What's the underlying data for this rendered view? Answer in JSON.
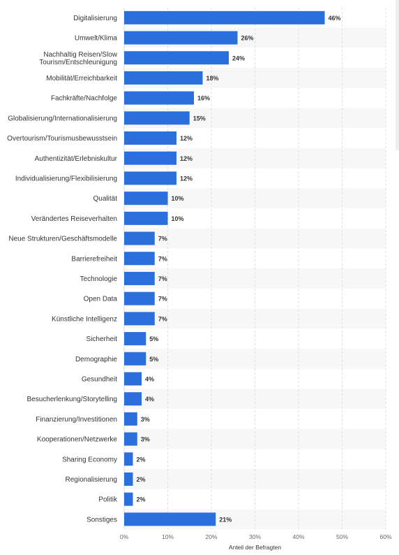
{
  "chart_data": {
    "type": "bar",
    "orientation": "horizontal",
    "categories": [
      [
        "Digitalisierung"
      ],
      [
        "Umwelt/Klima"
      ],
      [
        "Nachhaltig Reisen/Slow",
        "Tourism/Entschleunigung"
      ],
      [
        "Mobilität/Erreichbarkeit"
      ],
      [
        "Fachkräfte/Nachfolge"
      ],
      [
        "Globalisierung/Internationalisierung"
      ],
      [
        "Overtourism/Tourismusbewusstsein"
      ],
      [
        "Authentizität/Erlebniskultur"
      ],
      [
        "Individualisierung/Flexibilisierung"
      ],
      [
        "Qualität"
      ],
      [
        "Verändertes Reiseverhalten"
      ],
      [
        "Neue Strukturen/Geschäftsmodelle"
      ],
      [
        "Barrierefreiheit"
      ],
      [
        "Technologie"
      ],
      [
        "Open Data"
      ],
      [
        "Künstliche Intelligenz"
      ],
      [
        "Sicherheit"
      ],
      [
        "Demographie"
      ],
      [
        "Gesundheit"
      ],
      [
        "Besucherlenkung/Storytelling"
      ],
      [
        "Finanzierung/Investitionen"
      ],
      [
        "Kooperationen/Netzwerke"
      ],
      [
        "Sharing Economy"
      ],
      [
        "Regionalisierung"
      ],
      [
        "Politik"
      ],
      [
        "Sonstiges"
      ]
    ],
    "values": [
      46,
      26,
      24,
      18,
      16,
      15,
      12,
      12,
      12,
      10,
      10,
      7,
      7,
      7,
      7,
      7,
      5,
      5,
      4,
      4,
      3,
      3,
      2,
      2,
      2,
      21
    ],
    "value_suffix": "%",
    "xlabel": "Anteil der Befragten",
    "ylabel": "",
    "xlim": [
      0,
      60
    ],
    "xticks": [
      "0%",
      "10%",
      "20%",
      "30%",
      "40%",
      "50%",
      "60%"
    ],
    "grid": true,
    "colors": {
      "bar": "#2a6fdb",
      "grid": "#dddddd",
      "band": "#f7f7f7"
    }
  }
}
